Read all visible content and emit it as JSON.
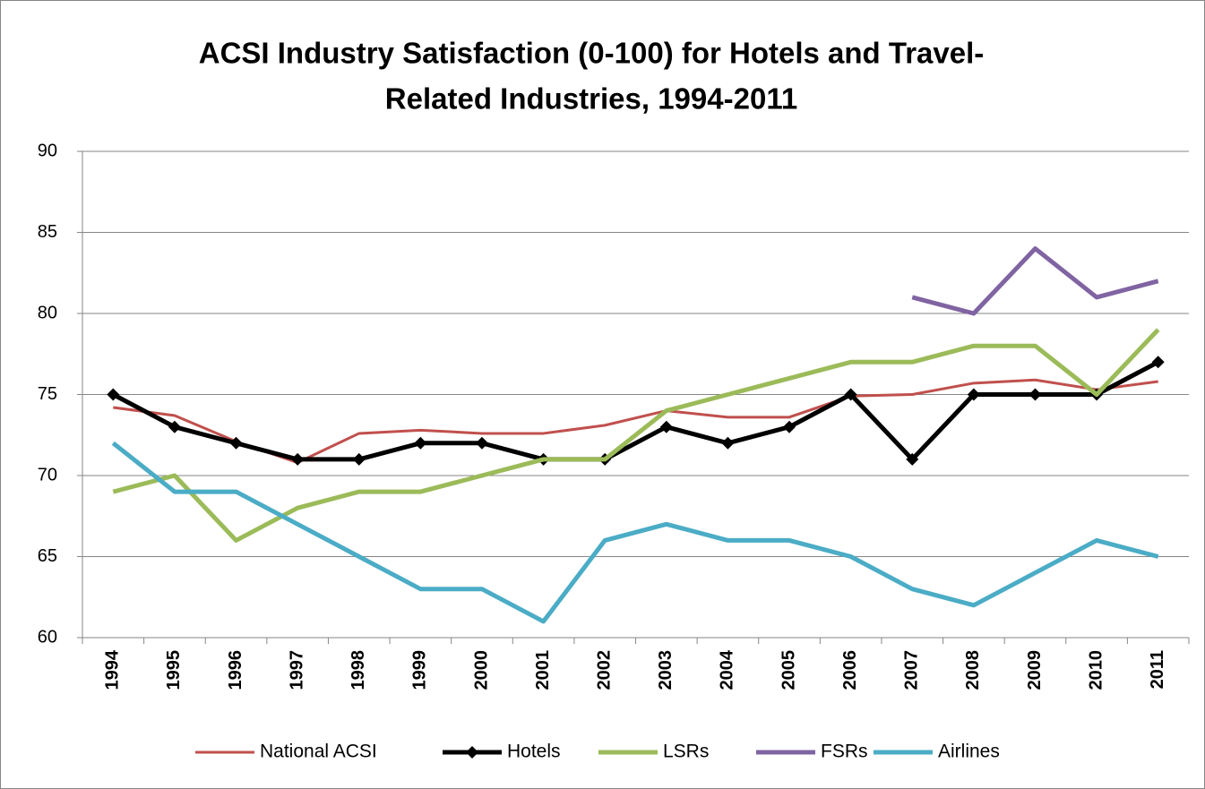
{
  "chart_data": {
    "type": "line",
    "title": [
      "ACSI Industry Satisfaction (0-100) for Hotels and Travel-",
      "Related Industries, 1994-2011"
    ],
    "categories": [
      "1994",
      "1995",
      "1996",
      "1997",
      "1998",
      "1999",
      "2000",
      "2001",
      "2002",
      "2003",
      "2004",
      "2005",
      "2006",
      "2007",
      "2008",
      "2009",
      "2010",
      "2011"
    ],
    "series": [
      {
        "name": "National ACSI",
        "color": "#c0504d",
        "values": [
          74.2,
          73.7,
          72.1,
          70.8,
          72.6,
          72.8,
          72.6,
          72.6,
          73.1,
          74.0,
          73.6,
          73.6,
          74.9,
          75.0,
          75.7,
          75.9,
          75.3,
          75.8
        ]
      },
      {
        "name": "Hotels",
        "color": "#000000",
        "marker": "diamond",
        "values": [
          75,
          73,
          72,
          71,
          71,
          72,
          72,
          71,
          71,
          73,
          72,
          73,
          75,
          71,
          75,
          75,
          75,
          77
        ]
      },
      {
        "name": "LSRs",
        "color": "#9bbb59",
        "values": [
          69,
          70,
          66,
          68,
          69,
          69,
          70,
          71,
          71,
          74,
          75,
          76,
          77,
          77,
          78,
          78,
          75,
          79
        ]
      },
      {
        "name": "FSRs",
        "color": "#8064a2",
        "values": [
          null,
          null,
          null,
          null,
          null,
          null,
          null,
          null,
          null,
          null,
          null,
          null,
          null,
          81,
          80,
          84,
          81,
          82
        ]
      },
      {
        "name": "Airlines",
        "color": "#4bacc6",
        "values": [
          72,
          69,
          69,
          67,
          65,
          63,
          63,
          61,
          66,
          67,
          66,
          66,
          65,
          63,
          62,
          64,
          66,
          65
        ]
      }
    ],
    "ylim": [
      60,
      90
    ],
    "yticks": [
      60,
      65,
      70,
      75,
      80,
      85,
      90
    ],
    "grid": true,
    "legend": "bottom"
  }
}
